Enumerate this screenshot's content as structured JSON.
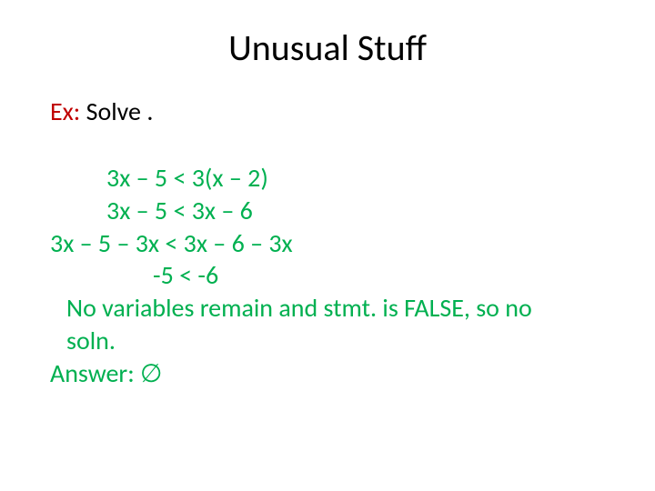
{
  "title": "Unusual Stuff",
  "ex_label": "Ex:",
  "solve_text": "  Solve .",
  "math": {
    "line1": "3x – 5 < 3(x – 2)",
    "line2": "3x – 5 < 3x – 6",
    "line3": "3x – 5 – 3x < 3x – 6 – 3x",
    "line4": "-5 < -6",
    "line5": "No variables remain and stmt. is FALSE, so no",
    "line6": "soln.",
    "line7": "Answer:  ∅"
  },
  "colors": {
    "title": "#000000",
    "ex_label": "#c00000",
    "math": "#00b050",
    "background": "#ffffff"
  },
  "fonts": {
    "title_size": 40,
    "body_size": 28,
    "family": "Calibri"
  }
}
